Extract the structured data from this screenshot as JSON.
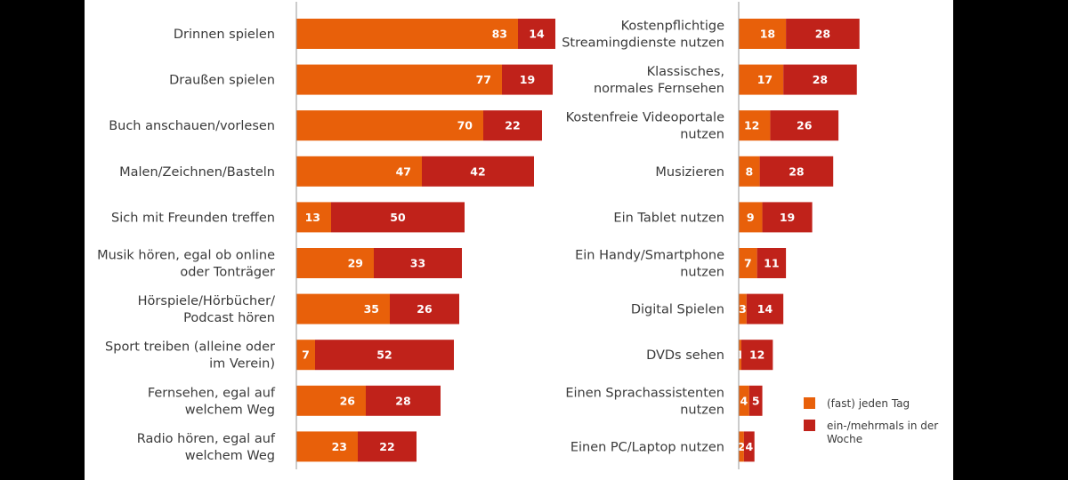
{
  "colors": {
    "daily": "#e8600a",
    "weekly": "#c0221a",
    "axis": "#999999"
  },
  "chart_data": [
    {
      "type": "bar",
      "orientation": "horizontal",
      "stacked": true,
      "xlim": [
        0,
        100
      ],
      "categories": [
        [
          "Drinnen spielen"
        ],
        [
          "Draußen spielen"
        ],
        [
          "Buch anschauen/vorlesen"
        ],
        [
          "Malen/Zeichnen/Basteln"
        ],
        [
          "Sich mit Freunden treffen"
        ],
        [
          "Musik hören, egal ob online",
          "oder Tonträger"
        ],
        [
          "Hörspiele/Hörbücher/",
          "Podcast hören"
        ],
        [
          "Sport treiben (alleine oder",
          "im Verein)"
        ],
        [
          "Fernsehen, egal auf",
          "welchem Weg"
        ],
        [
          "Radio hören, egal auf",
          "welchem Weg"
        ]
      ],
      "series": [
        {
          "name": "(fast) jeden Tag",
          "values": [
            83,
            77,
            70,
            47,
            13,
            29,
            35,
            7,
            26,
            23
          ]
        },
        {
          "name": "ein-/mehrmals in der Woche",
          "values": [
            14,
            19,
            22,
            42,
            50,
            33,
            26,
            52,
            28,
            22
          ]
        }
      ]
    },
    {
      "type": "bar",
      "orientation": "horizontal",
      "stacked": true,
      "xlim": [
        0,
        100
      ],
      "categories": [
        [
          "Kostenpflichtige",
          "Streamingdienste nutzen"
        ],
        [
          "Klassisches,",
          "normales Fernsehen"
        ],
        [
          "Kostenfreie Videoportale",
          "nutzen"
        ],
        [
          "Musizieren"
        ],
        [
          "Ein Tablet nutzen"
        ],
        [
          "Ein Handy/Smartphone",
          "nutzen"
        ],
        [
          "Digital Spielen"
        ],
        [
          "DVDs sehen"
        ],
        [
          "Einen Sprachassistenten",
          "nutzen"
        ],
        [
          "Einen PC/Laptop nutzen"
        ]
      ],
      "series": [
        {
          "name": "(fast) jeden Tag",
          "values": [
            18,
            17,
            12,
            8,
            9,
            7,
            3,
            1,
            4,
            2
          ]
        },
        {
          "name": "ein-/mehrmals in der Woche",
          "values": [
            28,
            28,
            26,
            28,
            19,
            11,
            14,
            12,
            5,
            4
          ]
        }
      ]
    }
  ],
  "legend": {
    "items": [
      {
        "label": [
          "(fast) jeden Tag"
        ]
      },
      {
        "label": [
          "ein-/mehrmals in der",
          "Woche"
        ]
      }
    ]
  }
}
